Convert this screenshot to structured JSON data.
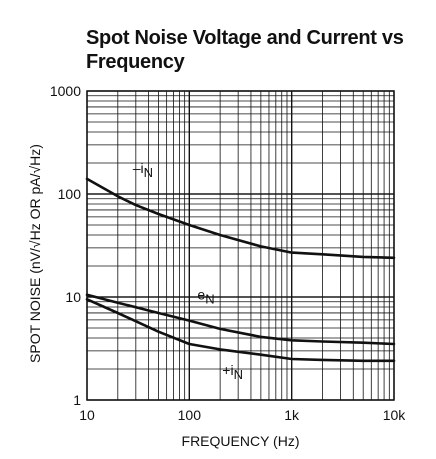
{
  "chart_data": {
    "type": "line",
    "title": "Spot Noise Voltage and Current vs Frequency",
    "xlabel": "FREQUENCY (Hz)",
    "ylabel": "SPOT NOISE (nV/√Hz OR pA/√Hz)",
    "xscale": "log",
    "yscale": "log",
    "xlim": [
      10,
      10000
    ],
    "ylim": [
      1,
      1000
    ],
    "xticks": [
      "10",
      "100",
      "1k",
      "10k"
    ],
    "yticks": [
      "1000",
      "100",
      "10",
      "1"
    ],
    "grid": true,
    "series": [
      {
        "name": "–iN",
        "x": [
          10,
          20,
          30,
          50,
          100,
          200,
          500,
          1000,
          2000,
          5000,
          10000
        ],
        "y": [
          140,
          95,
          78,
          64,
          50,
          40,
          31,
          27,
          26,
          24.5,
          24
        ]
      },
      {
        "name": "eN",
        "x": [
          10,
          20,
          50,
          100,
          200,
          500,
          1000,
          2000,
          5000,
          10000
        ],
        "y": [
          10.5,
          8.8,
          7,
          5.9,
          4.9,
          4.1,
          3.8,
          3.7,
          3.6,
          3.5
        ]
      },
      {
        "name": "+iN",
        "x": [
          10,
          20,
          50,
          100,
          200,
          500,
          1000,
          2000,
          5000,
          10000
        ],
        "y": [
          9.5,
          7,
          4.6,
          3.5,
          3.1,
          2.75,
          2.5,
          2.45,
          2.4,
          2.4
        ]
      }
    ],
    "line_color": "#111111"
  }
}
